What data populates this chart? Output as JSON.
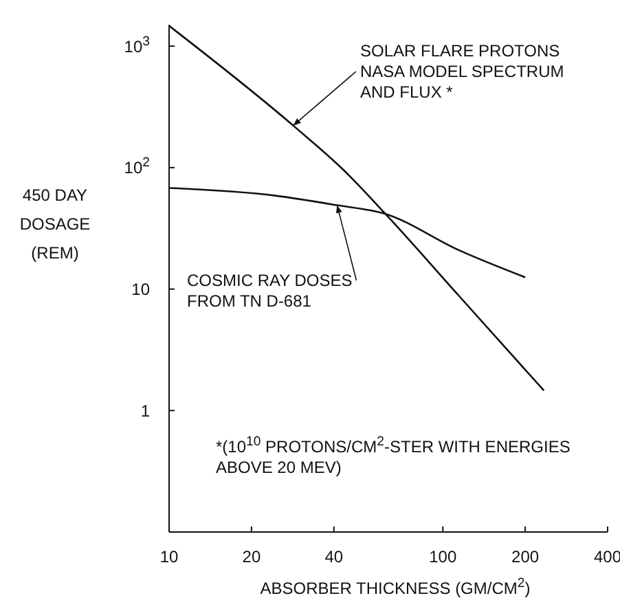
{
  "chart_data": {
    "type": "line",
    "xlabel": "ABSORBER THICKNESS (GM/CM$^{2}$)",
    "ylabel": "450 DAY\nDOSAGE\n(REM)",
    "log": "xy",
    "grid": false,
    "marker": "none",
    "line_style": "solid",
    "xlim": [
      10,
      400
    ],
    "xticks": [
      10,
      20,
      40,
      100,
      200,
      400
    ],
    "ylim": [
      0.1,
      1500
    ],
    "yticks": [
      {
        "value": 1000,
        "label": "10$^{3}$"
      },
      {
        "value": 100,
        "label": "10$^{2}$"
      },
      10,
      1
    ],
    "series": [
      {
        "color": "#111111",
        "x": [
          10,
          28.4,
          43.5,
          61.7,
          114,
          234
        ],
        "values": [
          1470,
          222,
          95,
          41.6,
          8.9,
          1.46
        ]
      },
      {
        "color": "#111111",
        "x": [
          10,
          24.4,
          41.1,
          61.7,
          114,
          200
        ],
        "values": [
          68,
          58.8,
          49,
          41.6,
          21,
          12.5
        ]
      }
    ],
    "annotations": [
      {
        "text": "SOLAR FLARE PROTONS\nNASA MODEL SPECTRUM\nAND FLUX *",
        "x": 28.4,
        "y": 222
      },
      {
        "text": "COSMIC RAY DOSES\nFROM TN D-681",
        "x": 41.1,
        "y": 49
      },
      "*(10$^{10}$ PROTONS/CM$^{2}$-STER WITH ENERGIES\nABOVE 20 MEV)"
    ]
  }
}
